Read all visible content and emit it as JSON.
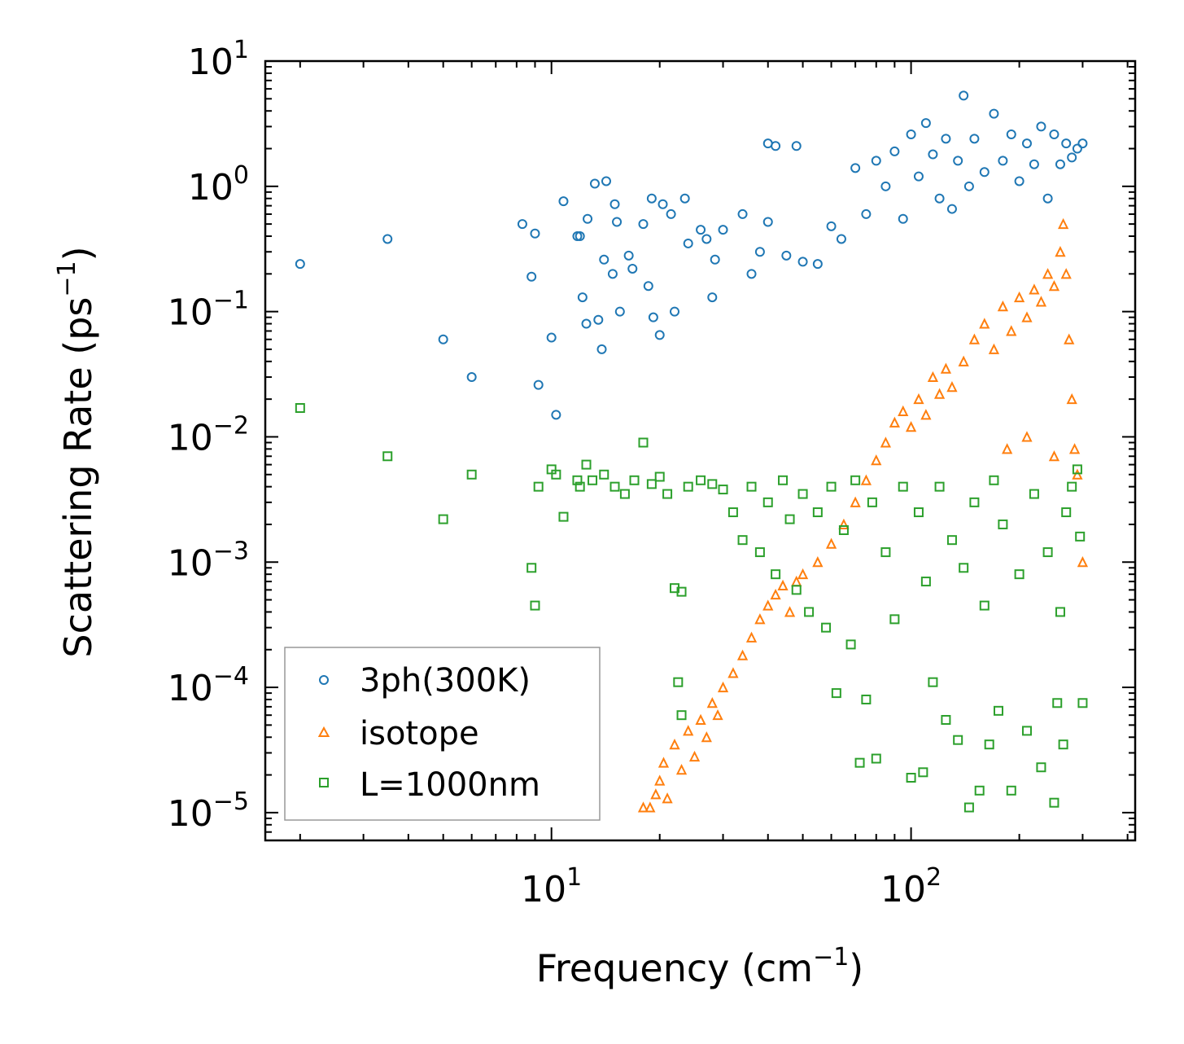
{
  "chart_data": {
    "type": "scatter",
    "xscale": "log",
    "yscale": "log",
    "xlim": [
      1.6,
      420
    ],
    "ylim": [
      6e-06,
      10
    ],
    "xlabel": {
      "text": "Frequency (cm",
      "sup": "−1",
      "close": ")"
    },
    "ylabel": {
      "text": "Scattering Rate (ps",
      "sup": "−1",
      "close": ")"
    },
    "x_ticks": [
      {
        "value": 10,
        "base": "10",
        "exp": "1"
      },
      {
        "value": 100,
        "base": "10",
        "exp": "2"
      }
    ],
    "y_ticks": [
      {
        "value": 10,
        "base": "10",
        "exp": "1"
      },
      {
        "value": 1,
        "base": "10",
        "exp": "0"
      },
      {
        "value": 0.1,
        "base": "10",
        "exp": "−1"
      },
      {
        "value": 0.01,
        "base": "10",
        "exp": "−2"
      },
      {
        "value": 0.001,
        "base": "10",
        "exp": "−3"
      },
      {
        "value": 0.0001,
        "base": "10",
        "exp": "−4"
      },
      {
        "value": 1e-05,
        "base": "10",
        "exp": "−5"
      }
    ],
    "legend_position": "lower-left",
    "series": [
      {
        "name": "3ph(300K)",
        "marker": "circle",
        "color": "#1f77b4",
        "points": [
          [
            2.0,
            0.24
          ],
          [
            3.5,
            0.38
          ],
          [
            5.0,
            0.06
          ],
          [
            6.0,
            0.03
          ],
          [
            8.3,
            0.5
          ],
          [
            8.8,
            0.19
          ],
          [
            9.0,
            0.42
          ],
          [
            9.2,
            0.026
          ],
          [
            10.0,
            0.062
          ],
          [
            10.3,
            0.015
          ],
          [
            10.8,
            0.76
          ],
          [
            11.8,
            0.4
          ],
          [
            12.0,
            0.4
          ],
          [
            12.2,
            0.13
          ],
          [
            12.5,
            0.08
          ],
          [
            12.6,
            0.55
          ],
          [
            13.2,
            1.05
          ],
          [
            13.5,
            0.086
          ],
          [
            13.8,
            0.05
          ],
          [
            14.0,
            0.26
          ],
          [
            14.2,
            1.1
          ],
          [
            14.8,
            0.2
          ],
          [
            15.0,
            0.72
          ],
          [
            15.2,
            0.52
          ],
          [
            15.5,
            0.1
          ],
          [
            16.4,
            0.28
          ],
          [
            16.8,
            0.22
          ],
          [
            18.0,
            0.5
          ],
          [
            18.6,
            0.16
          ],
          [
            19.0,
            0.8
          ],
          [
            19.2,
            0.09
          ],
          [
            20.0,
            0.065
          ],
          [
            20.4,
            0.72
          ],
          [
            21.5,
            0.6
          ],
          [
            22.0,
            0.1
          ],
          [
            23.5,
            0.8
          ],
          [
            24.0,
            0.35
          ],
          [
            26.0,
            0.45
          ],
          [
            27.0,
            0.38
          ],
          [
            28.0,
            0.13
          ],
          [
            28.5,
            0.26
          ],
          [
            30.0,
            0.45
          ],
          [
            34.0,
            0.6
          ],
          [
            36.0,
            0.2
          ],
          [
            38.0,
            0.3
          ],
          [
            40.0,
            0.52
          ],
          [
            40.0,
            2.2
          ],
          [
            42.0,
            2.1
          ],
          [
            45.0,
            0.28
          ],
          [
            48.0,
            2.1
          ],
          [
            50.0,
            0.25
          ],
          [
            55.0,
            0.24
          ],
          [
            60.0,
            0.48
          ],
          [
            64.0,
            0.38
          ],
          [
            70.0,
            1.4
          ],
          [
            75.0,
            0.6
          ],
          [
            80.0,
            1.6
          ],
          [
            85.0,
            1.0
          ],
          [
            90.0,
            1.9
          ],
          [
            95.0,
            0.55
          ],
          [
            100.0,
            2.6
          ],
          [
            105.0,
            1.2
          ],
          [
            110.0,
            3.2
          ],
          [
            115.0,
            1.8
          ],
          [
            120.0,
            0.8
          ],
          [
            125.0,
            2.4
          ],
          [
            130.0,
            0.66
          ],
          [
            135.0,
            1.6
          ],
          [
            140.0,
            5.3
          ],
          [
            145.0,
            1.0
          ],
          [
            150.0,
            2.4
          ],
          [
            160.0,
            1.3
          ],
          [
            170.0,
            3.8
          ],
          [
            180.0,
            1.6
          ],
          [
            190.0,
            2.6
          ],
          [
            200.0,
            1.1
          ],
          [
            210.0,
            2.2
          ],
          [
            220.0,
            1.5
          ],
          [
            230.0,
            3.0
          ],
          [
            240.0,
            0.8
          ],
          [
            250.0,
            2.6
          ],
          [
            260.0,
            1.5
          ],
          [
            270.0,
            2.2
          ],
          [
            280.0,
            1.7
          ],
          [
            290.0,
            2.0
          ],
          [
            300.0,
            2.2
          ]
        ]
      },
      {
        "name": "isotope",
        "marker": "triangle",
        "color": "#ff7f0e",
        "points": [
          [
            18.0,
            1.1e-05
          ],
          [
            18.8,
            1.1e-05
          ],
          [
            19.5,
            1.4e-05
          ],
          [
            20.0,
            1.8e-05
          ],
          [
            20.5,
            2.5e-05
          ],
          [
            21.0,
            1.3e-05
          ],
          [
            22.0,
            3.5e-05
          ],
          [
            23.0,
            2.2e-05
          ],
          [
            24.0,
            4.5e-05
          ],
          [
            25.0,
            2.8e-05
          ],
          [
            26.0,
            5.5e-05
          ],
          [
            27.0,
            4e-05
          ],
          [
            28.0,
            7.5e-05
          ],
          [
            29.0,
            6e-05
          ],
          [
            30.0,
            0.0001
          ],
          [
            32.0,
            0.00013
          ],
          [
            34.0,
            0.00018
          ],
          [
            36.0,
            0.00025
          ],
          [
            38.0,
            0.00035
          ],
          [
            40.0,
            0.00045
          ],
          [
            42.0,
            0.00055
          ],
          [
            44.0,
            0.00065
          ],
          [
            46.0,
            0.0004
          ],
          [
            48.0,
            0.0007
          ],
          [
            50.0,
            0.0008
          ],
          [
            55.0,
            0.001
          ],
          [
            60.0,
            0.0014
          ],
          [
            65.0,
            0.002
          ],
          [
            70.0,
            0.003
          ],
          [
            75.0,
            0.0045
          ],
          [
            80.0,
            0.0065
          ],
          [
            85.0,
            0.009
          ],
          [
            90.0,
            0.013
          ],
          [
            95.0,
            0.016
          ],
          [
            100.0,
            0.012
          ],
          [
            105.0,
            0.02
          ],
          [
            110.0,
            0.015
          ],
          [
            115.0,
            0.03
          ],
          [
            120.0,
            0.022
          ],
          [
            125.0,
            0.035
          ],
          [
            130.0,
            0.025
          ],
          [
            140.0,
            0.04
          ],
          [
            150.0,
            0.06
          ],
          [
            160.0,
            0.08
          ],
          [
            170.0,
            0.05
          ],
          [
            180.0,
            0.11
          ],
          [
            190.0,
            0.07
          ],
          [
            200.0,
            0.13
          ],
          [
            210.0,
            0.09
          ],
          [
            220.0,
            0.15
          ],
          [
            230.0,
            0.12
          ],
          [
            240.0,
            0.2
          ],
          [
            250.0,
            0.16
          ],
          [
            260.0,
            0.3
          ],
          [
            265.0,
            0.5
          ],
          [
            270.0,
            0.2
          ],
          [
            275.0,
            0.06
          ],
          [
            280.0,
            0.02
          ],
          [
            285.0,
            0.008
          ],
          [
            290.0,
            0.005
          ],
          [
            185.0,
            0.008
          ],
          [
            210.0,
            0.01
          ],
          [
            250.0,
            0.007
          ],
          [
            300.0,
            0.001
          ]
        ]
      },
      {
        "name": "L=1000nm",
        "marker": "square",
        "color": "#2ca02c",
        "points": [
          [
            2.0,
            0.017
          ],
          [
            3.5,
            0.007
          ],
          [
            5.0,
            0.0022
          ],
          [
            6.0,
            0.005
          ],
          [
            8.8,
            0.0009
          ],
          [
            9.0,
            0.00045
          ],
          [
            9.2,
            0.004
          ],
          [
            10.0,
            0.0055
          ],
          [
            10.3,
            0.005
          ],
          [
            10.8,
            0.0023
          ],
          [
            11.8,
            0.0045
          ],
          [
            12.0,
            0.004
          ],
          [
            12.5,
            0.006
          ],
          [
            13.0,
            0.0045
          ],
          [
            14.0,
            0.005
          ],
          [
            15.0,
            0.004
          ],
          [
            16.0,
            0.0035
          ],
          [
            17.0,
            0.0045
          ],
          [
            18.0,
            0.009
          ],
          [
            19.0,
            0.0042
          ],
          [
            20.0,
            0.0048
          ],
          [
            21.0,
            0.0035
          ],
          [
            22.0,
            0.00062
          ],
          [
            23.0,
            0.00058
          ],
          [
            22.5,
            0.00011
          ],
          [
            23.0,
            6e-05
          ],
          [
            24.0,
            0.004
          ],
          [
            26.0,
            0.0045
          ],
          [
            28.0,
            0.0042
          ],
          [
            30.0,
            0.0038
          ],
          [
            32.0,
            0.0025
          ],
          [
            34.0,
            0.0015
          ],
          [
            36.0,
            0.004
          ],
          [
            38.0,
            0.0012
          ],
          [
            40.0,
            0.003
          ],
          [
            42.0,
            0.0008
          ],
          [
            44.0,
            0.0045
          ],
          [
            46.0,
            0.0022
          ],
          [
            48.0,
            0.0006
          ],
          [
            50.0,
            0.0035
          ],
          [
            52.0,
            0.0004
          ],
          [
            55.0,
            0.0025
          ],
          [
            58.0,
            0.0003
          ],
          [
            60.0,
            0.004
          ],
          [
            62.0,
            9e-05
          ],
          [
            65.0,
            0.0018
          ],
          [
            68.0,
            0.00022
          ],
          [
            70.0,
            0.0045
          ],
          [
            72.0,
            2.5e-05
          ],
          [
            75.0,
            8e-05
          ],
          [
            78.0,
            0.003
          ],
          [
            80.0,
            2.7e-05
          ],
          [
            85.0,
            0.0012
          ],
          [
            90.0,
            0.00035
          ],
          [
            95.0,
            0.004
          ],
          [
            100.0,
            1.9e-05
          ],
          [
            105.0,
            0.0025
          ],
          [
            108.0,
            2.1e-05
          ],
          [
            110.0,
            0.0007
          ],
          [
            115.0,
            0.00011
          ],
          [
            120.0,
            0.004
          ],
          [
            125.0,
            5.5e-05
          ],
          [
            130.0,
            0.0015
          ],
          [
            135.0,
            3.8e-05
          ],
          [
            140.0,
            0.0009
          ],
          [
            145.0,
            1.1e-05
          ],
          [
            150.0,
            0.003
          ],
          [
            155.0,
            1.5e-05
          ],
          [
            160.0,
            0.00045
          ],
          [
            165.0,
            3.5e-05
          ],
          [
            170.0,
            0.0045
          ],
          [
            175.0,
            6.5e-05
          ],
          [
            180.0,
            0.002
          ],
          [
            190.0,
            1.5e-05
          ],
          [
            200.0,
            0.0008
          ],
          [
            210.0,
            4.5e-05
          ],
          [
            220.0,
            0.0035
          ],
          [
            230.0,
            2.3e-05
          ],
          [
            240.0,
            0.0012
          ],
          [
            250.0,
            1.2e-05
          ],
          [
            255.0,
            7.5e-05
          ],
          [
            260.0,
            0.0004
          ],
          [
            265.0,
            3.5e-05
          ],
          [
            270.0,
            0.0025
          ],
          [
            280.0,
            0.004
          ],
          [
            290.0,
            0.0055
          ],
          [
            295.0,
            0.0016
          ],
          [
            300.0,
            7.5e-05
          ]
        ]
      }
    ]
  }
}
